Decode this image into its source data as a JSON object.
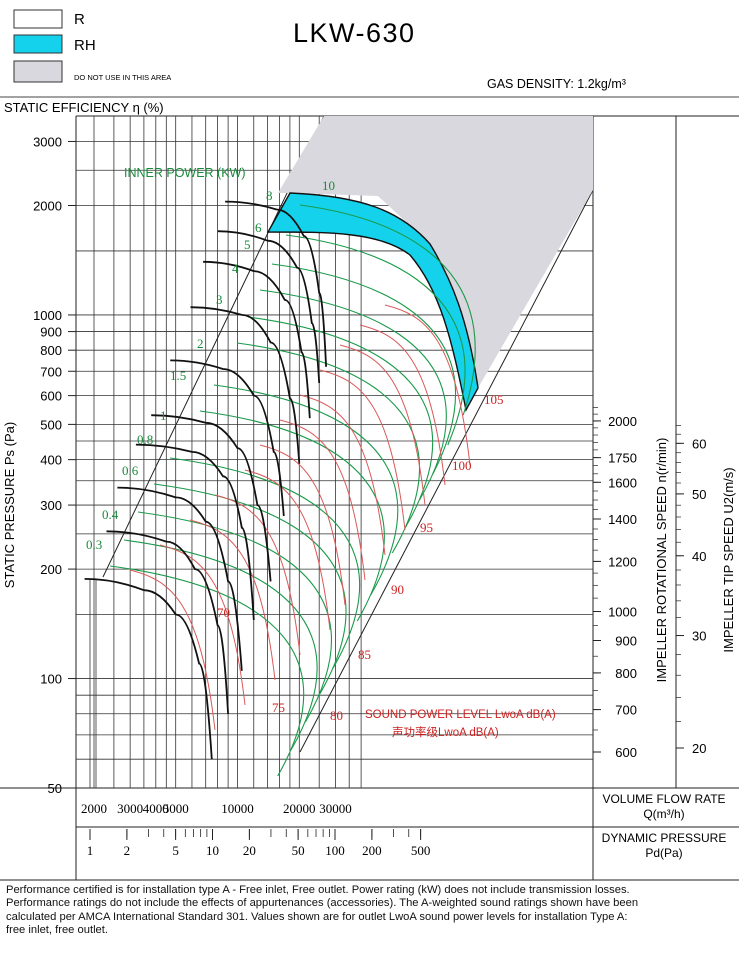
{
  "title": "LKW-630",
  "legend": [
    {
      "label": "R",
      "color": "#ffffff"
    },
    {
      "label": "RH",
      "color": "#15d2ec"
    },
    {
      "label": "DO NOT USE IN THIS AREA",
      "color": "#d9d8de"
    }
  ],
  "gas_density": "GAS DENSITY: 1.2kg/m³",
  "static_efficiency_label": "STATIC EFFICIENCY η (%)",
  "inner_power_label": "INNER POWER (KW)",
  "sound_label_en": "SOUND POWER LEVEL LwoA dB(A)",
  "sound_label_cn": "声功率级LwoA dB(A)",
  "footnote": [
    "Performance certified is for installation type A - Free inlet, Free outlet. Power rating (kW) does not include transmission losses.",
    "Performance ratings do not include the effects of appurtenances (accessories). The A-weighted sound ratings shown have been",
    "calculated per AMCA International Standard 301. Values shown are for outlet LwoA sound power levels for installation Type A:",
    "free inlet, free outlet."
  ],
  "chart_data": {
    "type": "line",
    "title": "LKW-630",
    "log_scale": true,
    "grid": true,
    "xlabel": "VOLUME FLOW RATE Q(m³/h)",
    "xlabel2": "DYNAMIC PRESSURE Pd(Pa)",
    "ylabel": "STATIC PRESSURE Ps (Pa)",
    "ylabel_right1": "IMPELLER ROTATIONAL SPEED n(r/min)",
    "ylabel_right2": "IMPELLER TIP SPEED U2(m/s)",
    "x_ticks": [
      2000,
      3000,
      4000,
      5000,
      10000,
      20000,
      30000
    ],
    "x_tick_labels": [
      "2000",
      "3000",
      "4000",
      "5000",
      "10000",
      "20000",
      "30000"
    ],
    "y_ticks": [
      50,
      100,
      200,
      300,
      400,
      500,
      600,
      700,
      800,
      900,
      1000,
      2000,
      3000
    ],
    "y_tick_labels": [
      "50",
      "100",
      "200",
      "300",
      "400",
      "500",
      "600",
      "700",
      "800",
      "900",
      "1000",
      "2000",
      "3000"
    ],
    "pd_ticks": [
      1,
      2,
      5,
      10,
      20,
      50,
      100,
      200,
      500
    ],
    "pd_tick_labels": [
      "1",
      "2",
      "5",
      "10",
      "20",
      "50",
      "100",
      "200",
      "500"
    ],
    "speed_ticks": [
      600,
      700,
      800,
      900,
      1000,
      1200,
      1400,
      1600,
      1750,
      2000
    ],
    "speed_tick_labels": [
      "600",
      "700",
      "800",
      "900",
      "1000",
      "1200",
      "1400",
      "1600",
      "1750",
      "2000"
    ],
    "tip_speed_ticks": [
      20,
      30,
      40,
      50,
      60
    ],
    "tip_speed_tick_labels": [
      "20",
      "30",
      "40",
      "50",
      "60"
    ],
    "power_labels": [
      "0.3",
      "0.4",
      "0.6",
      "0.8",
      "1",
      "1.5",
      "2",
      "3",
      "4",
      "5",
      "6",
      "8",
      "10"
    ],
    "sound_labels": [
      "70",
      "75",
      "80",
      "85",
      "90",
      "95",
      "100",
      "105"
    ],
    "speed_curves": [
      {
        "rpm": 1000,
        "points": [
          [
            1800,
            188
          ],
          [
            3500,
            175
          ],
          [
            5000,
            150
          ],
          [
            6500,
            110
          ],
          [
            7500,
            60
          ]
        ]
      },
      {
        "rpm": 1100,
        "points": [
          [
            2300,
            254
          ],
          [
            4500,
            238
          ],
          [
            6200,
            200
          ],
          [
            8000,
            140
          ],
          [
            9000,
            80
          ]
        ]
      },
      {
        "rpm": 1200,
        "points": [
          [
            2600,
            335
          ],
          [
            5000,
            315
          ],
          [
            7000,
            270
          ],
          [
            9000,
            185
          ],
          [
            10500,
            105
          ]
        ]
      },
      {
        "rpm": 1300,
        "points": [
          [
            3200,
            440
          ],
          [
            6000,
            420
          ],
          [
            8500,
            360
          ],
          [
            10500,
            260
          ],
          [
            12000,
            145
          ]
        ]
      },
      {
        "rpm": 1400,
        "points": [
          [
            3800,
            530
          ],
          [
            7000,
            505
          ],
          [
            10000,
            430
          ],
          [
            12500,
            300
          ],
          [
            14500,
            185
          ]
        ]
      },
      {
        "rpm": 1500,
        "points": [
          [
            4700,
            750
          ],
          [
            8500,
            710
          ],
          [
            12000,
            600
          ],
          [
            15000,
            420
          ],
          [
            16800,
            280
          ]
        ]
      },
      {
        "rpm": 1600,
        "points": [
          [
            5900,
            1050
          ],
          [
            10500,
            1000
          ],
          [
            14500,
            840
          ],
          [
            18000,
            590
          ],
          [
            20000,
            390
          ]
        ]
      },
      {
        "rpm": 1700,
        "points": [
          [
            6800,
            1400
          ],
          [
            12000,
            1320
          ],
          [
            17000,
            1100
          ],
          [
            20500,
            790
          ],
          [
            22500,
            520
          ]
        ]
      },
      {
        "rpm": 1800,
        "points": [
          [
            8000,
            1700
          ],
          [
            14000,
            1600
          ],
          [
            19500,
            1350
          ],
          [
            23000,
            950
          ],
          [
            25000,
            650
          ]
        ]
      },
      {
        "rpm": 1900,
        "points": [
          [
            8700,
            2050
          ],
          [
            15500,
            1950
          ],
          [
            21000,
            1650
          ],
          [
            25000,
            1150
          ],
          [
            27000,
            720
          ]
        ]
      }
    ]
  }
}
